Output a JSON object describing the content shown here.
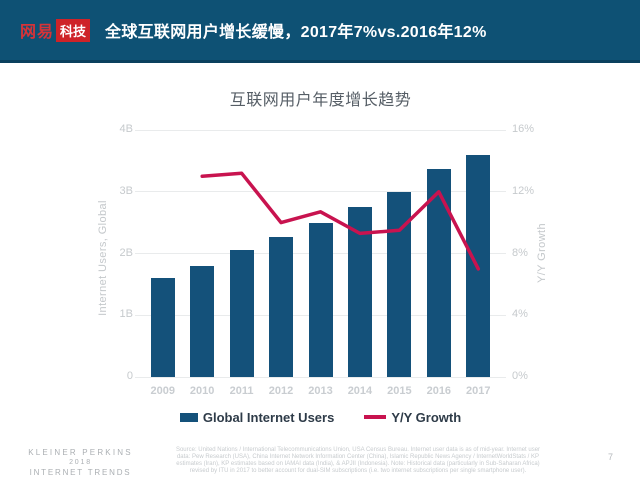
{
  "header": {
    "logo": {
      "brand": "网易",
      "badge": "科技"
    },
    "title": "全球互联网用户增长缓慢，2017年7%vs.2016年12%"
  },
  "chart_data": {
    "type": "bar",
    "title": "互联网用户年度增长趋势",
    "categories": [
      "2009",
      "2010",
      "2011",
      "2012",
      "2013",
      "2014",
      "2015",
      "2016",
      "2017"
    ],
    "series": [
      {
        "name": "Global Internet Users",
        "type": "bar",
        "axis": "left",
        "unit": "billions",
        "color": "#14517A",
        "values": [
          1.6,
          1.8,
          2.05,
          2.27,
          2.5,
          2.75,
          3.0,
          3.37,
          3.6
        ]
      },
      {
        "name": "Y/Y Growth",
        "type": "line",
        "axis": "right",
        "unit": "%",
        "color": "#C8134F",
        "values": [
          null,
          13,
          13.2,
          10,
          10.7,
          9.3,
          9.5,
          12,
          7
        ]
      }
    ],
    "left_axis": {
      "title": "Internet Users, Global",
      "ticks": [
        "0",
        "1B",
        "2B",
        "3B",
        "4B"
      ],
      "range": [
        0,
        4
      ]
    },
    "right_axis": {
      "title": "Y/Y Growth",
      "ticks": [
        "0%",
        "4%",
        "8%",
        "12%",
        "16%"
      ],
      "range": [
        0,
        16
      ]
    },
    "grid": true,
    "legend_position": "bottom"
  },
  "footer": {
    "brand_lines": [
      "KLEINER PERKINS",
      "2018",
      "INTERNET TRENDS"
    ],
    "source_lines": [
      "Source: United Nations / International Telecommunications Union, USA Census Bureau. Internet user data is as of mid-year. Internet user",
      "data: Pew Research (USA), China Internet Network Information Center (China), Islamic Republic News Agency / InternetWorldStats / KP",
      "estimates (Iran), KP estimates based on IAMAI data (India), & APJII (Indonesia). Note: Historical data (particularly in Sub-Saharan Africa)",
      "revised by ITU in 2017 to better account for dual-SIM subscriptions (i.e. two internet subscriptions per single smartphone user)."
    ],
    "page_number": "7"
  },
  "colors": {
    "header_bg": "#0E5174",
    "bar": "#14517A",
    "line": "#C8134F",
    "logo_red": "#CE2328"
  }
}
